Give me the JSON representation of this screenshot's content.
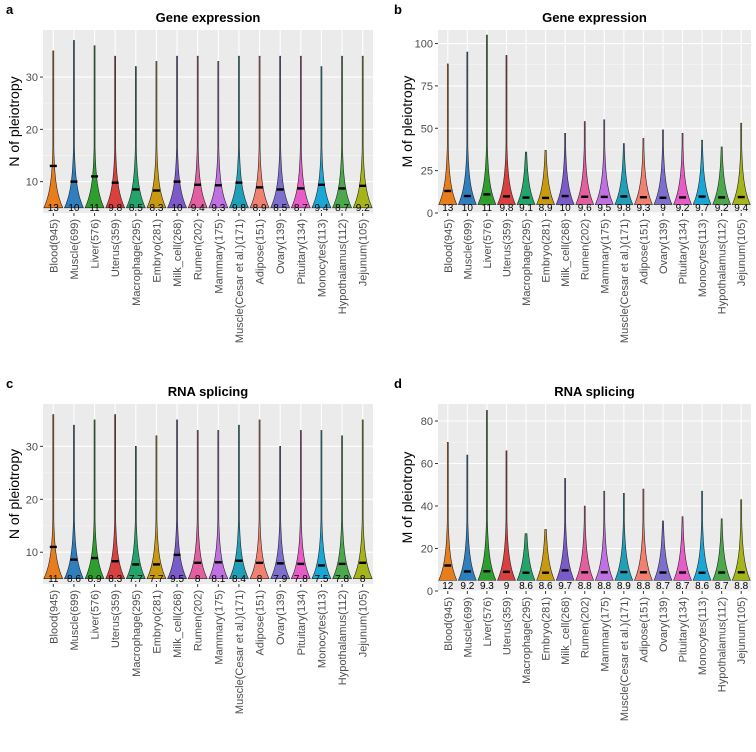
{
  "figure": {
    "colors": [
      "#E87D1E",
      "#2F7FBF",
      "#2E9E2E",
      "#D94040",
      "#24A36B",
      "#C89A12",
      "#7B5BC9",
      "#E35FA0",
      "#C070E0",
      "#1FA0B8",
      "#F08070",
      "#7E6FCF",
      "#E85CC8",
      "#1BA7D6",
      "#4CA84C",
      "#A5B418"
    ],
    "tissues": [
      "Blood(945)",
      "Muscle(699)",
      "Liver(576)",
      "Uterus(359)",
      "Macrophage(295)",
      "Embryo(281)",
      "Milk_cell(268)",
      "Rumen(202)",
      "Mammary(175)",
      "Muscle(Cesar et al.)(171)",
      "Adipose(151)",
      "Ovary(139)",
      "Pituitary(134)",
      "Monocytes(113)",
      "Hypothalamus(112)",
      "Jejunum(105)"
    ]
  },
  "chart_data": [
    {
      "panel": "a",
      "type": "violin",
      "title": "Gene expression",
      "ylabel": "N of pleiotropy",
      "xlabel": "",
      "ylim": [
        4,
        39
      ],
      "yticks": [
        10,
        20,
        30
      ],
      "grid": true,
      "categories": [
        "Blood(945)",
        "Muscle(699)",
        "Liver(576)",
        "Uterus(359)",
        "Macrophage(295)",
        "Embryo(281)",
        "Milk_cell(268)",
        "Rumen(202)",
        "Mammary(175)",
        "Muscle(Cesar et al.)(171)",
        "Adipose(151)",
        "Ovary(139)",
        "Pituitary(134)",
        "Monocytes(113)",
        "Hypothalamus(112)",
        "Jejunum(105)"
      ],
      "means": [
        13,
        10,
        11,
        9.8,
        8.5,
        8.3,
        10,
        9.4,
        9.3,
        9.8,
        8.9,
        8.5,
        8.7,
        9.4,
        8.7,
        9.2
      ],
      "mean_labels": [
        "13",
        "10",
        "11",
        "9.8",
        "8.5",
        "8.3",
        "10",
        "9.4",
        "9.3",
        "9.8",
        "8.9",
        "8.5",
        "8.7",
        "9.4",
        "8.7",
        "9.2"
      ],
      "mins": [
        5,
        5,
        5,
        5,
        5,
        5,
        5,
        5,
        5,
        5,
        5,
        5,
        5,
        5,
        5,
        5
      ],
      "maxes": [
        35,
        37,
        36,
        34,
        32,
        33,
        34,
        34,
        33,
        34,
        34,
        34,
        34,
        32,
        34,
        34
      ]
    },
    {
      "panel": "b",
      "type": "violin",
      "title": "Gene expression",
      "ylabel": "M of pleiotropy",
      "xlabel": "",
      "ylim": [
        0,
        108
      ],
      "yticks": [
        0,
        25,
        50,
        75,
        100
      ],
      "grid": true,
      "categories": [
        "Blood(945)",
        "Muscle(699)",
        "Liver(576)",
        "Uterus(359)",
        "Macrophage(295)",
        "Embryo(281)",
        "Milk_cell(268)",
        "Rumen(202)",
        "Mammary(175)",
        "Muscle(Cesar et al.)(171)",
        "Adipose(151)",
        "Ovary(139)",
        "Pituitary(134)",
        "Monocytes(113)",
        "Hypothalamus(112)",
        "Jejunum(105)"
      ],
      "means": [
        13,
        10,
        11,
        9.8,
        9.1,
        8.9,
        10,
        9.6,
        9.5,
        9.8,
        9.3,
        9,
        9.2,
        9.7,
        9.2,
        9.4
      ],
      "mean_labels": [
        "13",
        "10",
        "11",
        "9.8",
        "9.1",
        "8.9",
        "10",
        "9.6",
        "9.5",
        "9.8",
        "9.3",
        "9",
        "9.2",
        "9.7",
        "9.2",
        "9.4"
      ],
      "mins": [
        5,
        5,
        5,
        5,
        5,
        5,
        5,
        5,
        5,
        5,
        5,
        5,
        5,
        5,
        5,
        5
      ],
      "maxes": [
        88,
        95,
        105,
        93,
        36,
        37,
        47,
        54,
        55,
        41,
        44,
        49,
        47,
        43,
        39,
        53
      ]
    },
    {
      "panel": "c",
      "type": "violin",
      "title": "RNA splicing",
      "ylabel": "N of pleiotropy",
      "xlabel": "",
      "ylim": [
        4,
        38
      ],
      "yticks": [
        10,
        20,
        30
      ],
      "grid": true,
      "categories": [
        "Blood(945)",
        "Muscle(699)",
        "Liver(576)",
        "Uterus(359)",
        "Macrophage(295)",
        "Embryo(281)",
        "Milk_cell(268)",
        "Rumen(202)",
        "Mammary(175)",
        "Muscle(Cesar et al.)(171)",
        "Adipose(151)",
        "Ovary(139)",
        "Pituitary(134)",
        "Monocytes(113)",
        "Hypothalamus(112)",
        "Jejunum(105)"
      ],
      "means": [
        11,
        8.6,
        8.9,
        8.3,
        7.7,
        7.7,
        9.5,
        8,
        8.1,
        8.4,
        8,
        7.9,
        7.8,
        7.5,
        7.8,
        8
      ],
      "mean_labels": [
        "11",
        "8.6",
        "8.9",
        "8.3",
        "7.7",
        "7.7",
        "9.5",
        "8",
        "8.1",
        "8.4",
        "8",
        "7.9",
        "7.8",
        "7.5",
        "7.8",
        "8"
      ],
      "mins": [
        5,
        5,
        5,
        5,
        5,
        5,
        5,
        5,
        5,
        5,
        5,
        5,
        5,
        5,
        5,
        5
      ],
      "maxes": [
        36,
        34,
        35,
        36,
        30,
        32,
        35,
        33,
        33,
        34,
        35,
        30,
        33,
        33,
        32,
        35
      ]
    },
    {
      "panel": "d",
      "type": "violin",
      "title": "RNA splicing",
      "ylabel": "M of pleiotropy",
      "xlabel": "",
      "ylim": [
        0,
        88
      ],
      "yticks": [
        0,
        20,
        40,
        60,
        80
      ],
      "grid": true,
      "categories": [
        "Blood(945)",
        "Muscle(699)",
        "Liver(576)",
        "Uterus(359)",
        "Macrophage(295)",
        "Embryo(281)",
        "Milk_cell(268)",
        "Rumen(202)",
        "Mammary(175)",
        "Muscle(Cesar et al.)(171)",
        "Adipose(151)",
        "Ovary(139)",
        "Pituitary(134)",
        "Monocytes(113)",
        "Hypothalamus(112)",
        "Jejunum(105)"
      ],
      "means": [
        12,
        9.2,
        9.3,
        9,
        8.6,
        8.6,
        9.7,
        8.8,
        8.8,
        8.9,
        8.8,
        8.7,
        8.7,
        8.6,
        8.7,
        8.8
      ],
      "mean_labels": [
        "12",
        "9.2",
        "9.3",
        "9",
        "8.6",
        "8.6",
        "9.7",
        "8.8",
        "8.8",
        "8.9",
        "8.8",
        "8.7",
        "8.7",
        "8.6",
        "8.7",
        "8.8"
      ],
      "mins": [
        5,
        5,
        5,
        5,
        5,
        5,
        5,
        5,
        5,
        5,
        5,
        5,
        5,
        5,
        5,
        5
      ],
      "maxes": [
        70,
        64,
        85,
        66,
        27,
        29,
        53,
        40,
        47,
        46,
        48,
        33,
        35,
        47,
        34,
        43
      ]
    }
  ]
}
